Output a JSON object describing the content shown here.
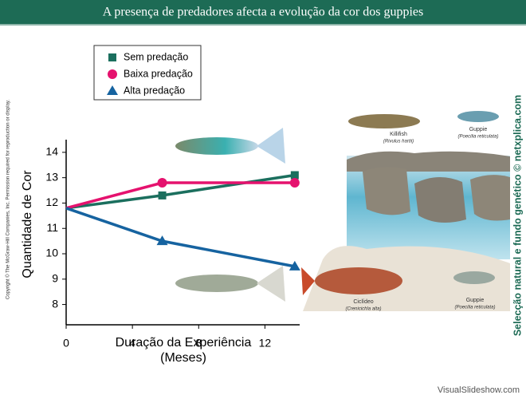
{
  "header": {
    "title": "A presença de predadores afecta a evolução da cor dos guppies"
  },
  "copyright": "Copyright © The McGraw-Hill Companies, Inc. Permission required for reproduction or display.",
  "side_credit": "Selecção natural e fundo genético © netxplica.com",
  "footer": "VisualSlideshow.com",
  "illustration_labels": [
    {
      "name": "Killifish",
      "species": "(Rivulus hartii)"
    },
    {
      "name": "Guppie",
      "species": "(Poecilia reticulata)"
    },
    {
      "name": "Ciclídeo",
      "species": "(Crenicichla alta)"
    },
    {
      "name": "Guppie",
      "species": "(Poecilia reticulata)"
    }
  ],
  "chart_data": {
    "type": "line",
    "ylabel": "Quantidade de Cor",
    "xlabel": [
      "Duração da Experiência",
      "(Meses)"
    ],
    "x": [
      0,
      5.8,
      13.8
    ],
    "xlim": [
      0,
      14
    ],
    "xticks": [
      0,
      4,
      8,
      12
    ],
    "ylim": [
      7.2,
      14.5
    ],
    "yticks": [
      8,
      9,
      10,
      11,
      12,
      13,
      14
    ],
    "legend": "upper left",
    "series": [
      {
        "name": "Sem predação",
        "color": "#1b6f5e",
        "marker": "square",
        "values": [
          11.8,
          12.3,
          13.1
        ]
      },
      {
        "name": "Baixa predação",
        "color": "#e5126e",
        "marker": "circle",
        "values": [
          11.8,
          12.8,
          12.8
        ]
      },
      {
        "name": "Alta predação",
        "color": "#1663a0",
        "marker": "triangle",
        "values": [
          11.8,
          10.5,
          9.5
        ]
      }
    ]
  }
}
